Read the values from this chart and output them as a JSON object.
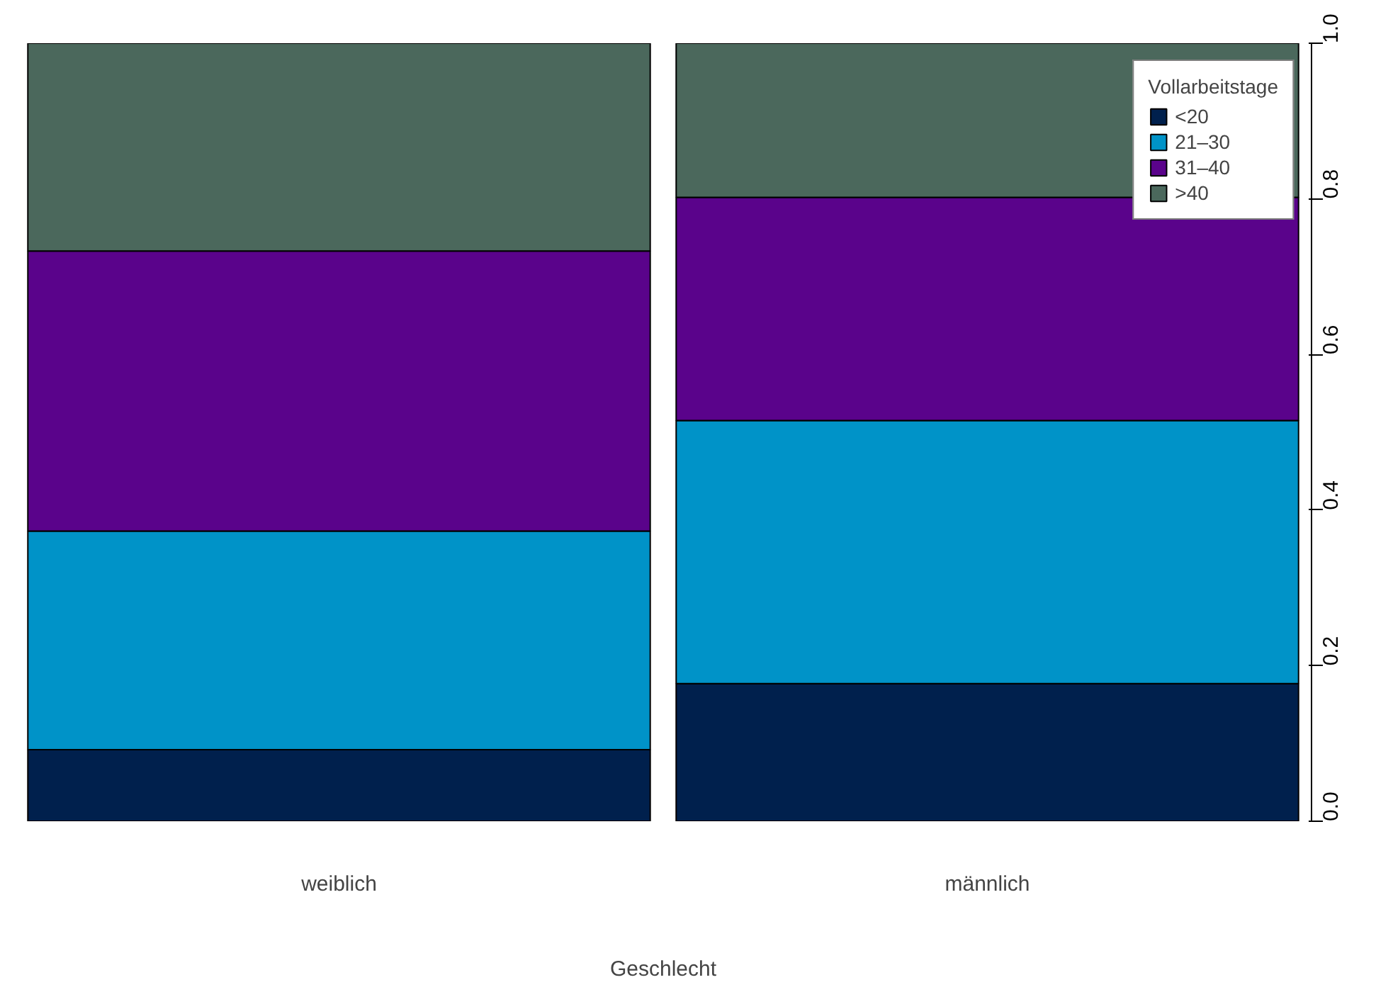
{
  "chart_data": {
    "type": "bar",
    "stacked": true,
    "xlabel": "Geschlecht",
    "legend_title": "Vollarbeitstage",
    "categories": [
      "weiblich",
      "männlich"
    ],
    "series": [
      {
        "name": "<20",
        "color": "#00204d",
        "values": [
          0.092,
          0.177
        ]
      },
      {
        "name": "21–30",
        "color": "#0093c8",
        "values": [
          0.281,
          0.338
        ]
      },
      {
        "name": "31–40",
        "color": "#5a038b",
        "values": [
          0.36,
          0.287
        ]
      },
      {
        "name": ">40",
        "color": "#4b685c",
        "values": [
          0.267,
          0.198
        ]
      }
    ],
    "ylim": [
      0,
      1
    ],
    "yticks": [
      {
        "value": 0,
        "label": "0.0"
      },
      0.2,
      0.4,
      0.6,
      0.8,
      {
        "value": 1,
        "label": "1.0"
      }
    ],
    "grid": false,
    "legend": "top right"
  }
}
